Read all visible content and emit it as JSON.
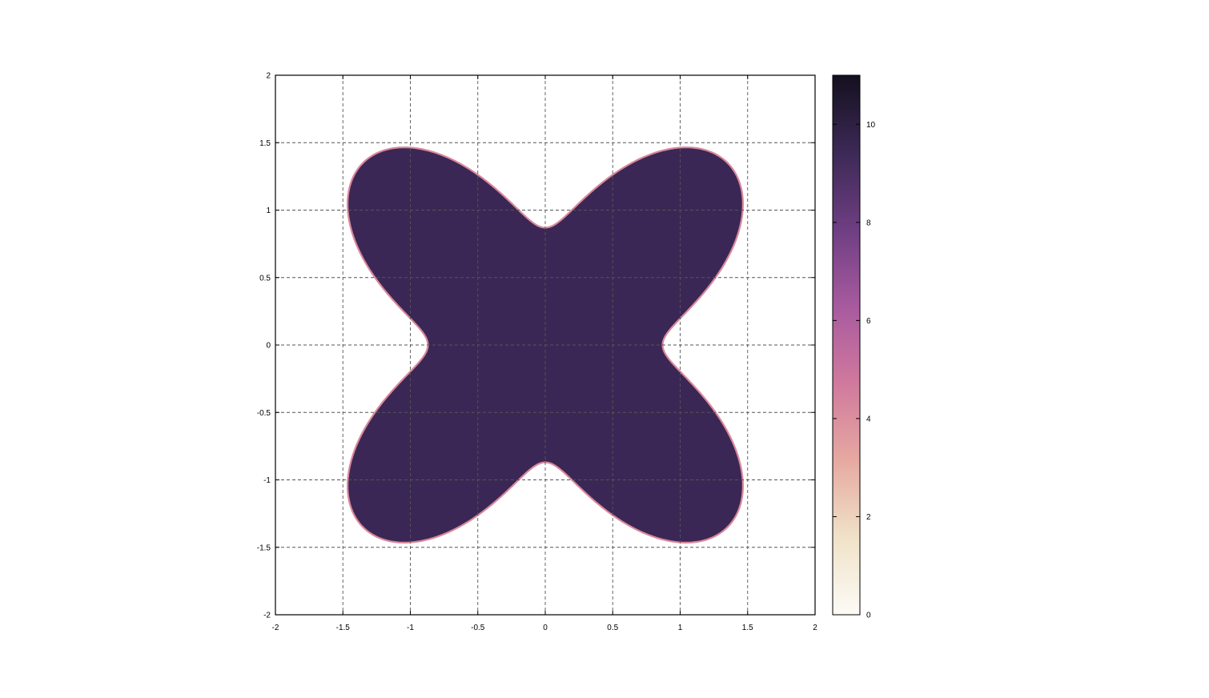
{
  "chart_data": {
    "type": "heatmap",
    "title": "",
    "xlabel": "",
    "ylabel": "",
    "xlim": [
      -2,
      2
    ],
    "ylim": [
      -2,
      2
    ],
    "grid": true,
    "x_ticks": [
      "-2",
      "-1.5",
      "-1",
      "-0.5",
      "0",
      "0.5",
      "1",
      "1.5",
      "2"
    ],
    "y_ticks": [
      "-2",
      "-1.5",
      "-1",
      "-0.5",
      "0",
      "0.5",
      "1",
      "1.5",
      "2"
    ],
    "x_tick_values": [
      -2,
      -1.5,
      -1,
      -0.5,
      0,
      0.5,
      1,
      1.5,
      2
    ],
    "y_tick_values": [
      -2,
      -1.5,
      -1,
      -0.5,
      0,
      0.5,
      1,
      1.5,
      2
    ],
    "colorbar": {
      "range": [
        0,
        11
      ],
      "ticks": [
        "0",
        "2",
        "4",
        "6",
        "8",
        "10"
      ],
      "tick_values": [
        0,
        2,
        4,
        6,
        8,
        10
      ],
      "colormap": [
        "#fcfbf6",
        "#f0e2c8",
        "#e6a9a1",
        "#d0799d",
        "#a85a9f",
        "#6e3e82",
        "#3c2956",
        "#14101f"
      ]
    },
    "region": {
      "shape": "four-lobed quartic blob",
      "inside_value": 9.6,
      "outside_value": 0,
      "fill_color": "#3b2755",
      "edge_color": "#d9889a",
      "boundary_polar_radius": {
        "r_at_axis_directions": 0.87,
        "r_at_diagonal_directions": 1.91
      }
    }
  }
}
